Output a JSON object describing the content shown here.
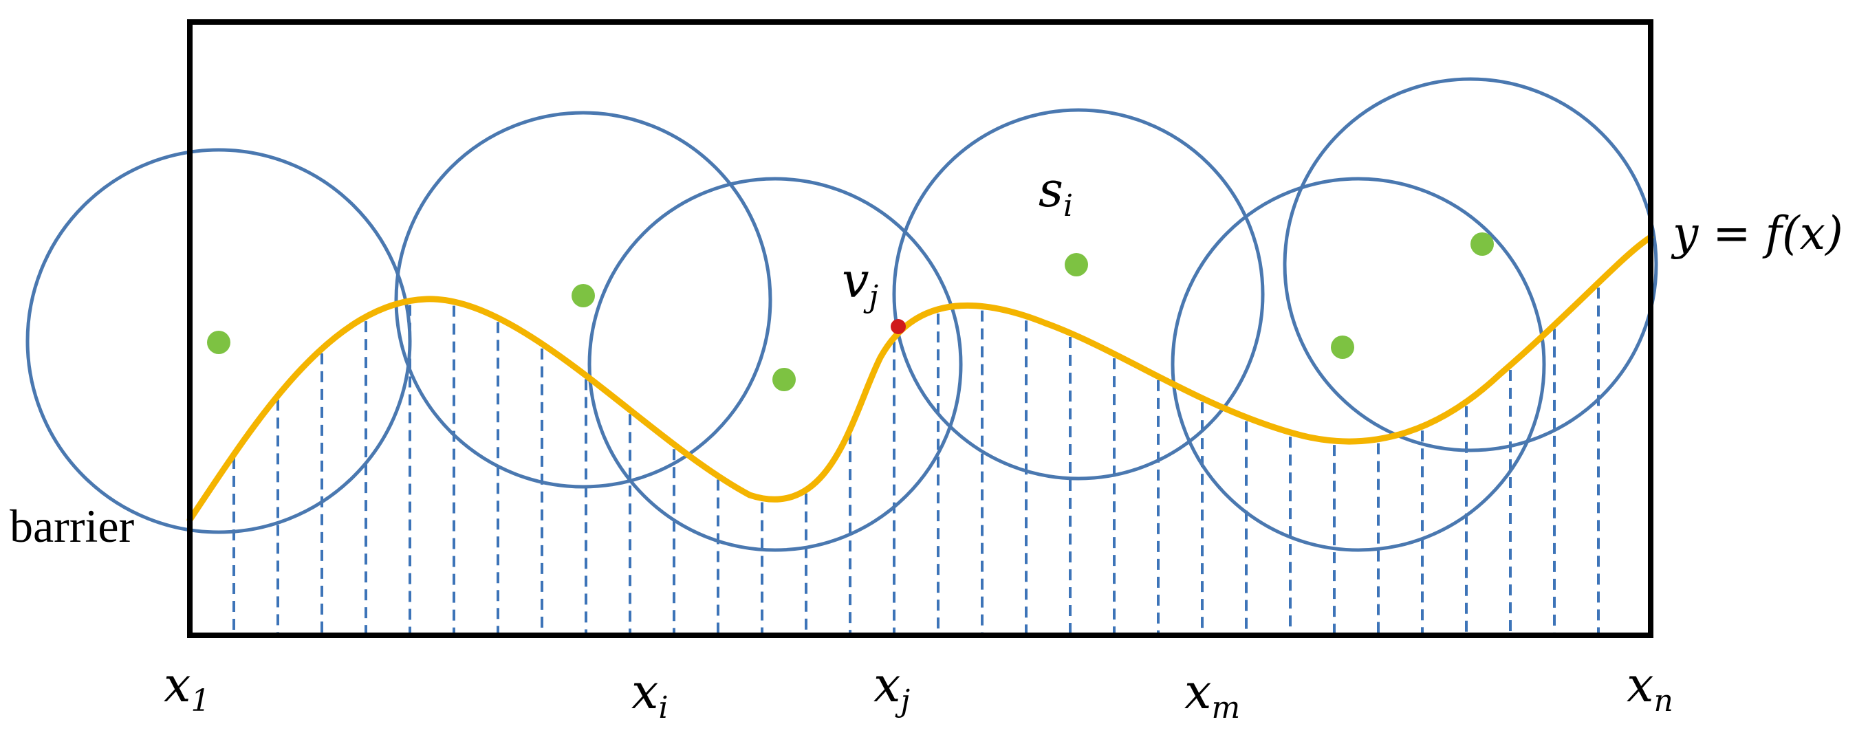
{
  "labels": {
    "barrier": "barrier",
    "curve": "y = f(x)",
    "sensor": {
      "base": "s",
      "sub": "i"
    },
    "point": {
      "base": "v",
      "sub": "j"
    }
  },
  "x_ticks": [
    {
      "base": "x",
      "sub": "1"
    },
    {
      "base": "x",
      "sub": "i"
    },
    {
      "base": "x",
      "sub": "j"
    },
    {
      "base": "x",
      "sub": "m"
    },
    {
      "base": "x",
      "sub": "n"
    }
  ],
  "colors": {
    "frame": "#000000",
    "circle": "#4a78b0",
    "curve": "#f4b400",
    "dashes": "#3d74b8",
    "sensor_fill": "#7dc242",
    "point_fill": "#d0191b"
  }
}
